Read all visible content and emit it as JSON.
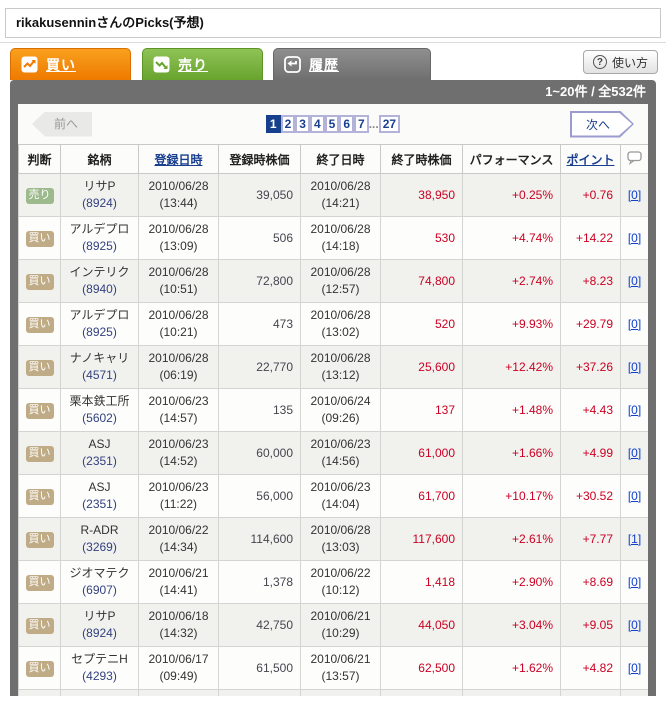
{
  "page": {
    "title": "rikakusenninさんのPicks(予想)"
  },
  "tabs": [
    {
      "id": "buy",
      "label": "買い"
    },
    {
      "id": "sell",
      "label": "売り"
    },
    {
      "id": "history",
      "label": "履歴",
      "active": true
    }
  ],
  "help_button": {
    "label": "使い方",
    "icon_glyph": "?"
  },
  "count_bar": {
    "text": "1~20件 / 全532件"
  },
  "pagination": {
    "prev_label": "前へ",
    "next_label": "次へ",
    "pages": [
      "1",
      "2",
      "3",
      "4",
      "5",
      "6",
      "7"
    ],
    "current": "1",
    "ellipsis": "...",
    "last_page": "27"
  },
  "table": {
    "headers": [
      {
        "label": "判断"
      },
      {
        "label": "銘柄"
      },
      {
        "label": "登録日時",
        "sortable": true
      },
      {
        "label": "登録時株価"
      },
      {
        "label": "終了日時"
      },
      {
        "label": "終了時株価"
      },
      {
        "label": "パフォーマンス"
      },
      {
        "label": "ポイント",
        "sortable": true
      },
      {
        "icon": "comment-balloon-icon"
      }
    ],
    "rows": [
      {
        "judgment": {
          "label": "売り",
          "type": "sell"
        },
        "stock": {
          "name": "リサP",
          "code": "(8924)"
        },
        "reg": {
          "date": "2010/06/28",
          "time": "(13:44)"
        },
        "reg_price": "39,050",
        "end": {
          "date": "2010/06/28",
          "time": "(14:21)"
        },
        "end_price": "38,950",
        "performance": "+0.25%",
        "points": "+0.76",
        "comments": "[0]"
      },
      {
        "judgment": {
          "label": "買い",
          "type": "buy"
        },
        "stock": {
          "name": "アルデプロ",
          "code": "(8925)"
        },
        "reg": {
          "date": "2010/06/28",
          "time": "(13:09)"
        },
        "reg_price": "506",
        "end": {
          "date": "2010/06/28",
          "time": "(14:18)"
        },
        "end_price": "530",
        "performance": "+4.74%",
        "points": "+14.22",
        "comments": "[0]"
      },
      {
        "judgment": {
          "label": "買い",
          "type": "buy"
        },
        "stock": {
          "name": "インテリク",
          "code": "(8940)"
        },
        "reg": {
          "date": "2010/06/28",
          "time": "(10:51)"
        },
        "reg_price": "72,800",
        "end": {
          "date": "2010/06/28",
          "time": "(12:57)"
        },
        "end_price": "74,800",
        "performance": "+2.74%",
        "points": "+8.23",
        "comments": "[0]"
      },
      {
        "judgment": {
          "label": "買い",
          "type": "buy"
        },
        "stock": {
          "name": "アルデプロ",
          "code": "(8925)"
        },
        "reg": {
          "date": "2010/06/28",
          "time": "(10:21)"
        },
        "reg_price": "473",
        "end": {
          "date": "2010/06/28",
          "time": "(13:02)"
        },
        "end_price": "520",
        "performance": "+9.93%",
        "points": "+29.79",
        "comments": "[0]"
      },
      {
        "judgment": {
          "label": "買い",
          "type": "buy"
        },
        "stock": {
          "name": "ナノキャリ",
          "code": "(4571)"
        },
        "reg": {
          "date": "2010/06/28",
          "time": "(06:19)"
        },
        "reg_price": "22,770",
        "end": {
          "date": "2010/06/28",
          "time": "(13:12)"
        },
        "end_price": "25,600",
        "performance": "+12.42%",
        "points": "+37.26",
        "comments": "[0]"
      },
      {
        "judgment": {
          "label": "買い",
          "type": "buy"
        },
        "stock": {
          "name": "栗本鉄工所",
          "code": "(5602)"
        },
        "reg": {
          "date": "2010/06/23",
          "time": "(14:57)"
        },
        "reg_price": "135",
        "end": {
          "date": "2010/06/24",
          "time": "(09:26)"
        },
        "end_price": "137",
        "performance": "+1.48%",
        "points": "+4.43",
        "comments": "[0]"
      },
      {
        "judgment": {
          "label": "買い",
          "type": "buy"
        },
        "stock": {
          "name": "ASJ",
          "code": "(2351)"
        },
        "reg": {
          "date": "2010/06/23",
          "time": "(14:52)"
        },
        "reg_price": "60,000",
        "end": {
          "date": "2010/06/23",
          "time": "(14:56)"
        },
        "end_price": "61,000",
        "performance": "+1.66%",
        "points": "+4.99",
        "comments": "[0]"
      },
      {
        "judgment": {
          "label": "買い",
          "type": "buy"
        },
        "stock": {
          "name": "ASJ",
          "code": "(2351)"
        },
        "reg": {
          "date": "2010/06/23",
          "time": "(11:22)"
        },
        "reg_price": "56,000",
        "end": {
          "date": "2010/06/23",
          "time": "(14:04)"
        },
        "end_price": "61,700",
        "performance": "+10.17%",
        "points": "+30.52",
        "comments": "[0]"
      },
      {
        "judgment": {
          "label": "買い",
          "type": "buy"
        },
        "stock": {
          "name": "R-ADR",
          "code": "(3269)"
        },
        "reg": {
          "date": "2010/06/22",
          "time": "(14:34)"
        },
        "reg_price": "114,600",
        "end": {
          "date": "2010/06/28",
          "time": "(13:03)"
        },
        "end_price": "117,600",
        "performance": "+2.61%",
        "points": "+7.77",
        "comments": "[1]"
      },
      {
        "judgment": {
          "label": "買い",
          "type": "buy"
        },
        "stock": {
          "name": "ジオマテク",
          "code": "(6907)"
        },
        "reg": {
          "date": "2010/06/21",
          "time": "(14:41)"
        },
        "reg_price": "1,378",
        "end": {
          "date": "2010/06/22",
          "time": "(10:12)"
        },
        "end_price": "1,418",
        "performance": "+2.90%",
        "points": "+8.69",
        "comments": "[0]"
      },
      {
        "judgment": {
          "label": "買い",
          "type": "buy"
        },
        "stock": {
          "name": "リサP",
          "code": "(8924)"
        },
        "reg": {
          "date": "2010/06/18",
          "time": "(14:32)"
        },
        "reg_price": "42,750",
        "end": {
          "date": "2010/06/21",
          "time": "(10:29)"
        },
        "end_price": "44,050",
        "performance": "+3.04%",
        "points": "+9.05",
        "comments": "[0]"
      },
      {
        "judgment": {
          "label": "買い",
          "type": "buy"
        },
        "stock": {
          "name": "セプテニH",
          "code": "(4293)"
        },
        "reg": {
          "date": "2010/06/17",
          "time": "(09:49)"
        },
        "reg_price": "61,500",
        "end": {
          "date": "2010/06/21",
          "time": "(13:57)"
        },
        "end_price": "62,500",
        "performance": "+1.62%",
        "points": "+4.82",
        "comments": "[0]"
      },
      {
        "judgment": {
          "label": "",
          "type": ""
        },
        "stock": {
          "name": "",
          "code": ""
        },
        "reg": {
          "date": "",
          "time": ""
        },
        "reg_price": "",
        "end": {
          "date": "",
          "time": ""
        },
        "end_price": "",
        "performance": "",
        "points": "",
        "comments": ""
      }
    ]
  },
  "colors": {
    "tab_buy_orange": "#ee7a00",
    "tab_sell_green": "#68a42e",
    "tab_history_gray": "#6f6f6f",
    "negative_red": "#cc0022",
    "link_navy": "#1b3f8f",
    "comment_link_blue": "#1040cc",
    "badge_sell_green": "#9cba8c",
    "badge_buy_tan": "#bfab85"
  }
}
